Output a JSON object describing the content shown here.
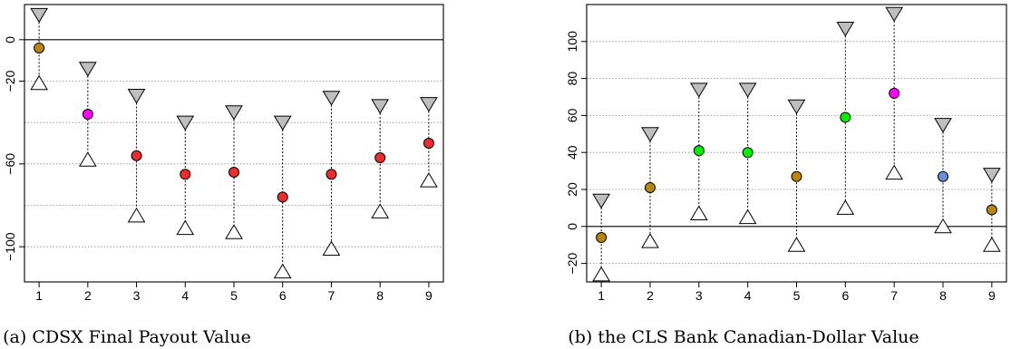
{
  "chart_data": [
    {
      "type": "scatter",
      "subtype": "interval-plot",
      "caption": "(a) CDSX Final Payout Value",
      "x": [
        1,
        2,
        3,
        4,
        5,
        6,
        7,
        8,
        9
      ],
      "xticks": [
        "1",
        "2",
        "3",
        "4",
        "5",
        "6",
        "7",
        "8",
        "9"
      ],
      "yticks": [
        "0",
        "−20",
        "−60",
        "−100"
      ],
      "ylim": [
        -117,
        17
      ],
      "xlim": [
        0.7,
        9.3
      ],
      "series": [
        {
          "role": "upper",
          "marker": "down-triangle",
          "color": "#bebebe",
          "values": [
            12,
            -14,
            -27,
            -40,
            -35,
            -40,
            -28,
            -32,
            -31
          ]
        },
        {
          "role": "point",
          "marker": "circle",
          "values": [
            -4,
            -36,
            -56,
            -65,
            -64,
            -76,
            -65,
            -57,
            -50
          ],
          "colors": [
            "#b8860b",
            "#ff00ff",
            "#ee2c2c",
            "#ee2c2c",
            "#ee2c2c",
            "#ee2c2c",
            "#ee2c2c",
            "#ee2c2c",
            "#ee2c2c"
          ]
        },
        {
          "role": "lower",
          "marker": "up-triangle",
          "color": "#ffffff",
          "values": [
            -21,
            -58,
            -85,
            -91,
            -93,
            -112,
            -101,
            -83,
            -68
          ]
        }
      ],
      "gridlines": [
        -20,
        -40,
        -60,
        -80,
        -100
      ],
      "refline": 0,
      "grid": true
    },
    {
      "type": "scatter",
      "subtype": "interval-plot",
      "caption": "(b) the CLS Bank Canadian-Dollar Value",
      "x": [
        1,
        2,
        3,
        4,
        5,
        6,
        7,
        8,
        9
      ],
      "xticks": [
        "1",
        "2",
        "3",
        "4",
        "5",
        "6",
        "7",
        "8",
        "9"
      ],
      "yticks": [
        "−20",
        "0",
        "20",
        "40",
        "60",
        "80",
        "100"
      ],
      "ylim": [
        -30,
        120
      ],
      "xlim": [
        0.7,
        9.3
      ],
      "series": [
        {
          "role": "upper",
          "marker": "down-triangle",
          "color": "#bebebe",
          "values": [
            14,
            50,
            74,
            74,
            65,
            107,
            115,
            55,
            28
          ]
        },
        {
          "role": "point",
          "marker": "circle",
          "values": [
            -6,
            21,
            41,
            40,
            27,
            59,
            72,
            27,
            9
          ],
          "colors": [
            "#b8860b",
            "#b8860b",
            "#00ee00",
            "#00ee00",
            "#b8860b",
            "#00ee00",
            "#ff00ff",
            "#6a8fdf",
            "#b8860b"
          ]
        },
        {
          "role": "lower",
          "marker": "up-triangle",
          "color": "#ffffff",
          "values": [
            -26,
            -8,
            7,
            5,
            -10,
            10,
            29,
            0,
            -10
          ]
        }
      ],
      "gridlines": [
        -20,
        20,
        40,
        60,
        80,
        100,
        120
      ],
      "refline": 0,
      "grid": true
    }
  ]
}
